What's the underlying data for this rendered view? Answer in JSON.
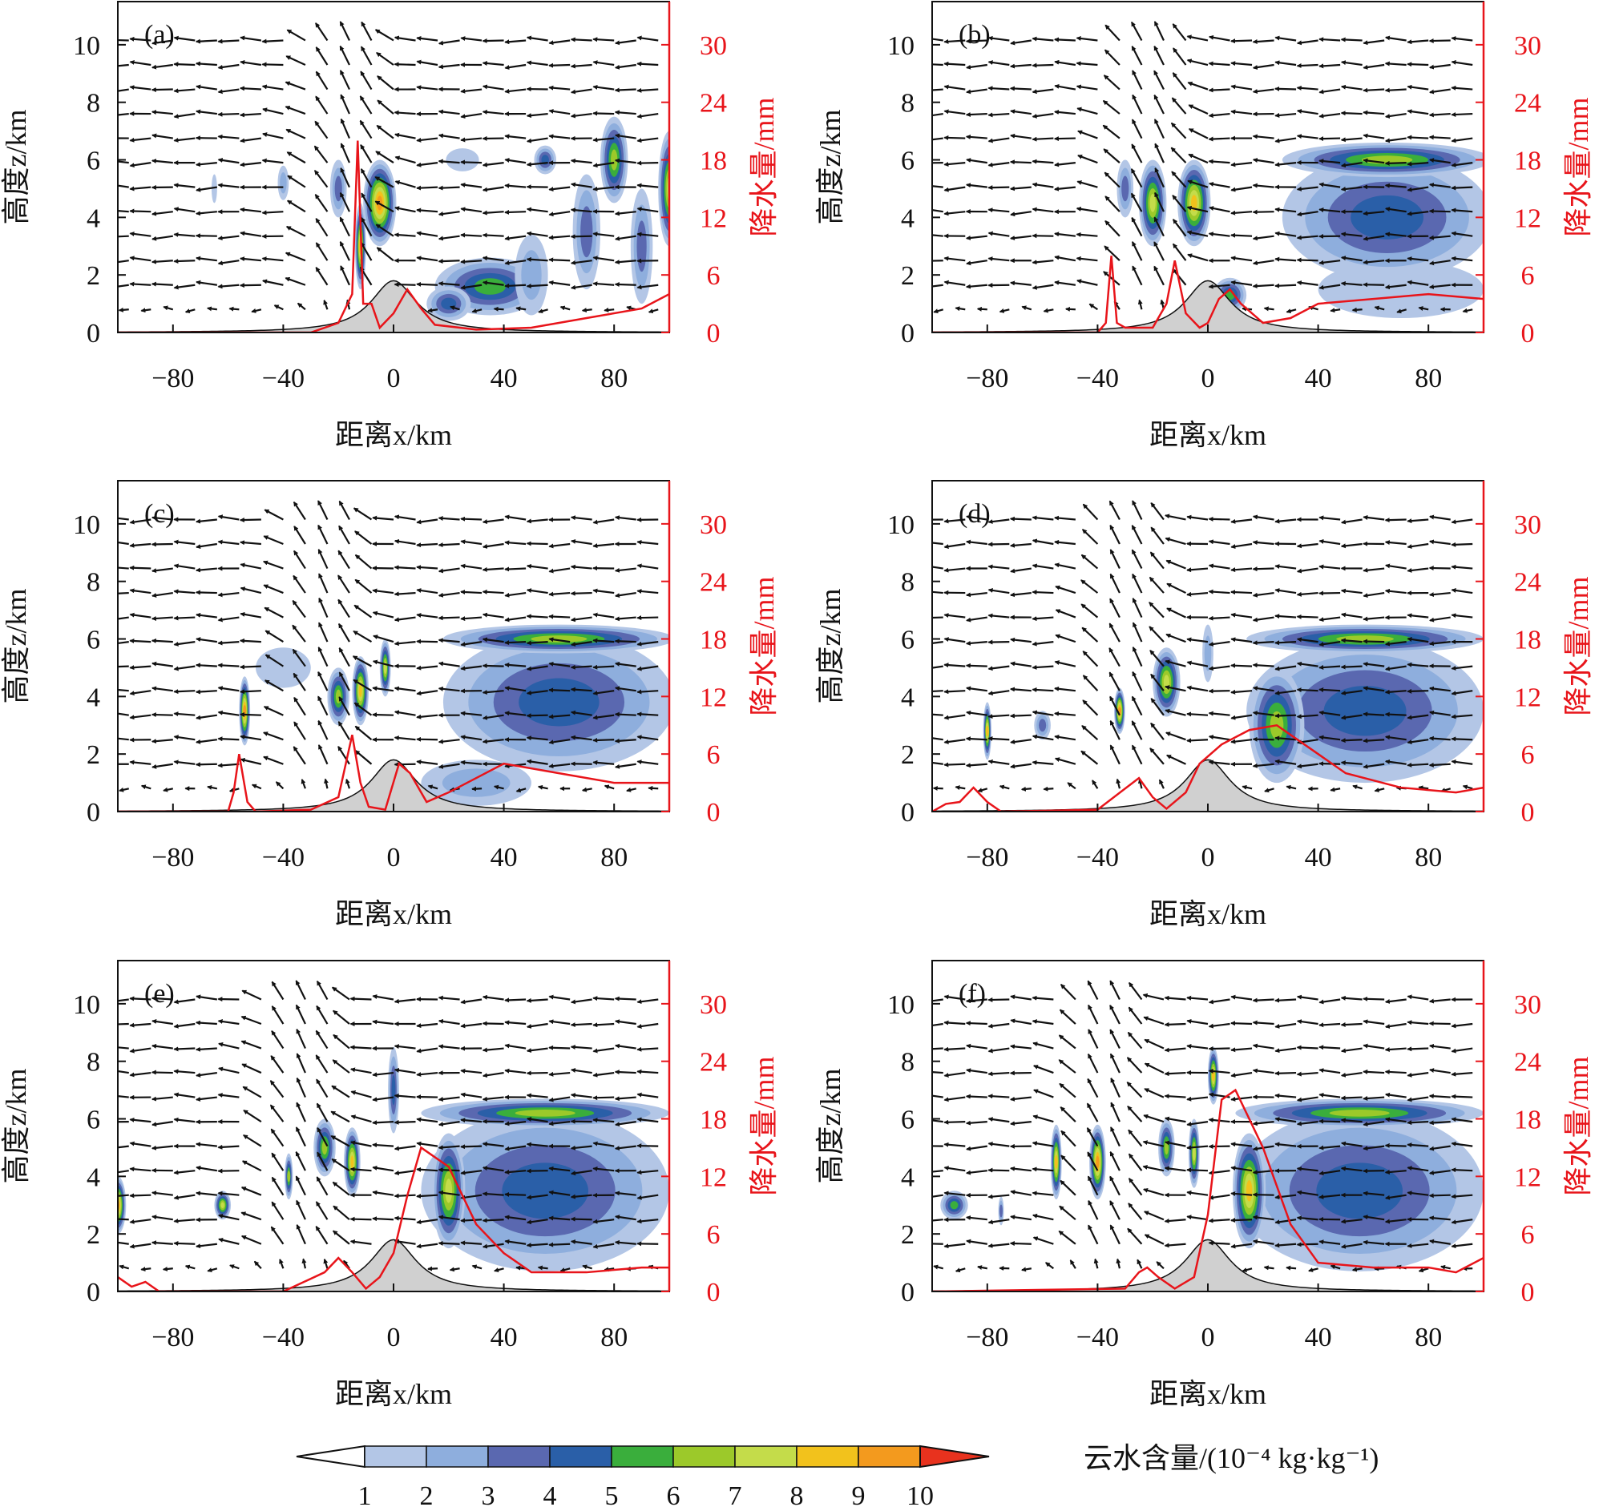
{
  "chart_data": {
    "type": "contour+vector+line",
    "x_axis": {
      "label": "距离x/km",
      "range": [
        -100,
        100
      ],
      "ticks": [
        -80,
        -40,
        0,
        40,
        80
      ],
      "tick_labels": [
        "−80",
        "−40",
        "0",
        "40",
        "80"
      ]
    },
    "y_axis_left": {
      "label": "高度z/km",
      "range": [
        0,
        11.5
      ],
      "ticks": [
        0,
        2,
        4,
        6,
        8,
        10
      ],
      "tick_labels": [
        "0",
        "2",
        "4",
        "6",
        "8",
        "10"
      ]
    },
    "y_axis_right": {
      "label": "降水量/mm",
      "range": [
        0,
        34.5
      ],
      "ticks": [
        0,
        6,
        12,
        18,
        24,
        30
      ],
      "tick_labels": [
        "0",
        "6",
        "12",
        "18",
        "24",
        "30"
      ],
      "color": "#e8141a"
    },
    "terrain": {
      "peak_height_km": 1.8,
      "half_width_km": 10,
      "color": "#d0d0d0"
    },
    "colorbar": {
      "label": "云水含量/(10⁻⁴ kg·kg⁻¹)",
      "levels": [
        "1",
        "2",
        "3",
        "4",
        "5",
        "6",
        "7",
        "8",
        "9",
        "10"
      ],
      "colors": [
        "#b3c6e6",
        "#8eaedd",
        "#5a68b0",
        "#2a5fa8",
        "#3aae3c",
        "#9cc92a",
        "#c4dc4a",
        "#f2c21c",
        "#f39a1e",
        "#e8321e"
      ]
    },
    "panels": [
      {
        "label": "(a)",
        "precip": [
          [
            -100,
            0
          ],
          [
            -30,
            0
          ],
          [
            -25,
            0.5
          ],
          [
            -20,
            1
          ],
          [
            -15,
            4
          ],
          [
            -13,
            20
          ],
          [
            -11,
            3
          ],
          [
            -8,
            3
          ],
          [
            -5,
            0.5
          ],
          [
            0,
            2
          ],
          [
            5,
            4.5
          ],
          [
            10,
            2.5
          ],
          [
            15,
            0.8
          ],
          [
            30,
            0.3
          ],
          [
            50,
            0.5
          ],
          [
            70,
            1.5
          ],
          [
            90,
            2.5
          ],
          [
            100,
            4
          ]
        ],
        "cloud": [
          [
            -5,
            4.5,
            6,
            1.5,
            9
          ],
          [
            -12,
            3,
            2,
            1.5,
            8
          ],
          [
            -20,
            5,
            3,
            1,
            3
          ],
          [
            -40,
            5.2,
            2,
            0.6,
            2
          ],
          [
            -65,
            5,
            1,
            0.5,
            1
          ],
          [
            35,
            1.6,
            20,
            1,
            5
          ],
          [
            20,
            1,
            8,
            0.6,
            4
          ],
          [
            55,
            6,
            4,
            0.5,
            4
          ],
          [
            80,
            6,
            5,
            1.5,
            6
          ],
          [
            100,
            5,
            4,
            2,
            7
          ],
          [
            70,
            3.5,
            5,
            2,
            3
          ],
          [
            90,
            3,
            4,
            2,
            3
          ],
          [
            25,
            6,
            6,
            0.4,
            1
          ],
          [
            50,
            2,
            6,
            1.4,
            2
          ]
        ]
      },
      {
        "label": "(b)",
        "precip": [
          [
            -100,
            0
          ],
          [
            -40,
            0
          ],
          [
            -37,
            1
          ],
          [
            -35,
            8
          ],
          [
            -33,
            1
          ],
          [
            -30,
            0.5
          ],
          [
            -20,
            0.5
          ],
          [
            -15,
            3
          ],
          [
            -12,
            7.5
          ],
          [
            -8,
            2
          ],
          [
            -3,
            0.5
          ],
          [
            0,
            1
          ],
          [
            4,
            3.5
          ],
          [
            8,
            4.5
          ],
          [
            12,
            3
          ],
          [
            20,
            1
          ],
          [
            30,
            1.5
          ],
          [
            40,
            3
          ],
          [
            60,
            3.5
          ],
          [
            80,
            4
          ],
          [
            100,
            3.5
          ]
        ],
        "cloud": [
          [
            -5,
            4.5,
            6,
            1.5,
            8
          ],
          [
            -20,
            4.5,
            5,
            1.5,
            7
          ],
          [
            -30,
            5,
            3,
            1,
            3
          ],
          [
            8,
            1.3,
            6,
            0.6,
            5
          ],
          [
            70,
            1.5,
            30,
            1,
            1
          ],
          [
            65,
            4,
            38,
            2.2,
            4
          ],
          [
            65,
            6,
            38,
            0.6,
            6
          ]
        ]
      },
      {
        "label": "(c)",
        "precip": [
          [
            -100,
            0
          ],
          [
            -60,
            0
          ],
          [
            -58,
            2
          ],
          [
            -56,
            6
          ],
          [
            -53,
            1
          ],
          [
            -50,
            0
          ],
          [
            -30,
            0.2
          ],
          [
            -20,
            1.5
          ],
          [
            -15,
            8
          ],
          [
            -12,
            3
          ],
          [
            -9,
            0.5
          ],
          [
            -3,
            0.2
          ],
          [
            2,
            5
          ],
          [
            6,
            4
          ],
          [
            12,
            1
          ],
          [
            20,
            2
          ],
          [
            40,
            5
          ],
          [
            60,
            4
          ],
          [
            80,
            3
          ],
          [
            100,
            3
          ]
        ],
        "cloud": [
          [
            -54,
            3.5,
            2,
            1.2,
            9
          ],
          [
            -40,
            5,
            10,
            0.7,
            1
          ],
          [
            -20,
            4,
            4,
            1,
            6
          ],
          [
            -12,
            4.2,
            3,
            1.2,
            8
          ],
          [
            -3,
            5,
            2,
            1,
            7
          ],
          [
            30,
            1,
            20,
            0.8,
            2
          ],
          [
            60,
            3.8,
            42,
            2.4,
            4
          ],
          [
            60,
            6,
            42,
            0.5,
            6
          ]
        ]
      },
      {
        "label": "(d)",
        "precip": [
          [
            -100,
            0
          ],
          [
            -95,
            0.8
          ],
          [
            -90,
            1
          ],
          [
            -85,
            2.5
          ],
          [
            -80,
            1
          ],
          [
            -75,
            0
          ],
          [
            -40,
            0.2
          ],
          [
            -25,
            3.5
          ],
          [
            -20,
            1.5
          ],
          [
            -15,
            0.3
          ],
          [
            -8,
            2
          ],
          [
            -3,
            5
          ],
          [
            5,
            7
          ],
          [
            15,
            8.5
          ],
          [
            25,
            9
          ],
          [
            35,
            7
          ],
          [
            50,
            4
          ],
          [
            70,
            2.5
          ],
          [
            90,
            2
          ],
          [
            100,
            2.5
          ]
        ],
        "cloud": [
          [
            -80,
            2.8,
            1.5,
            1,
            8
          ],
          [
            -60,
            3,
            3,
            0.5,
            3
          ],
          [
            -32,
            3.5,
            2,
            0.8,
            9
          ],
          [
            -15,
            4.5,
            5,
            1.2,
            7
          ],
          [
            0,
            5.5,
            2,
            1,
            2
          ],
          [
            57,
            3.5,
            43,
            2.5,
            4
          ],
          [
            57,
            6,
            43,
            0.5,
            6
          ],
          [
            25,
            3,
            10,
            2,
            6
          ]
        ]
      },
      {
        "label": "(e)",
        "precip": [
          [
            -100,
            1.5
          ],
          [
            -95,
            0.5
          ],
          [
            -90,
            1
          ],
          [
            -85,
            0
          ],
          [
            -40,
            0
          ],
          [
            -25,
            2
          ],
          [
            -20,
            3.5
          ],
          [
            -15,
            2
          ],
          [
            -10,
            0.3
          ],
          [
            -5,
            1.5
          ],
          [
            0,
            4
          ],
          [
            5,
            10
          ],
          [
            10,
            15
          ],
          [
            20,
            13
          ],
          [
            30,
            7
          ],
          [
            40,
            4
          ],
          [
            50,
            2
          ],
          [
            70,
            2
          ],
          [
            90,
            2.5
          ],
          [
            100,
            2.5
          ]
        ],
        "cloud": [
          [
            -100,
            3,
            3,
            1,
            9
          ],
          [
            -62,
            3,
            3,
            0.5,
            7
          ],
          [
            -38,
            4,
            1.5,
            0.8,
            6
          ],
          [
            -25,
            5,
            4,
            1,
            6
          ],
          [
            -15,
            4.5,
            3,
            1.2,
            8
          ],
          [
            0,
            7,
            2,
            1.5,
            4
          ],
          [
            55,
            3.5,
            45,
            2.8,
            4
          ],
          [
            55,
            6.2,
            45,
            0.5,
            6
          ],
          [
            20,
            3.5,
            6,
            2,
            7
          ]
        ]
      },
      {
        "label": "(f)",
        "precip": [
          [
            -100,
            0
          ],
          [
            -30,
            0.3
          ],
          [
            -25,
            2
          ],
          [
            -22,
            2.5
          ],
          [
            -18,
            1.5
          ],
          [
            -12,
            0.3
          ],
          [
            -5,
            1.5
          ],
          [
            0,
            8
          ],
          [
            5,
            20
          ],
          [
            10,
            21
          ],
          [
            20,
            15
          ],
          [
            30,
            7
          ],
          [
            40,
            3
          ],
          [
            60,
            2.5
          ],
          [
            80,
            2.5
          ],
          [
            90,
            2
          ],
          [
            100,
            3.5
          ]
        ],
        "cloud": [
          [
            -92,
            3,
            5,
            0.5,
            5
          ],
          [
            -75,
            2.8,
            1,
            0.5,
            3
          ],
          [
            -55,
            4.5,
            2,
            1.3,
            8
          ],
          [
            -40,
            4.5,
            3,
            1.3,
            9
          ],
          [
            -15,
            5,
            3,
            1,
            6
          ],
          [
            -5,
            4.8,
            2,
            1.2,
            7
          ],
          [
            2,
            7.5,
            2,
            1,
            8
          ],
          [
            55,
            3.5,
            45,
            2.8,
            4
          ],
          [
            55,
            6.2,
            45,
            0.5,
            6
          ],
          [
            15,
            3.5,
            6,
            2,
            8
          ]
        ]
      }
    ]
  }
}
